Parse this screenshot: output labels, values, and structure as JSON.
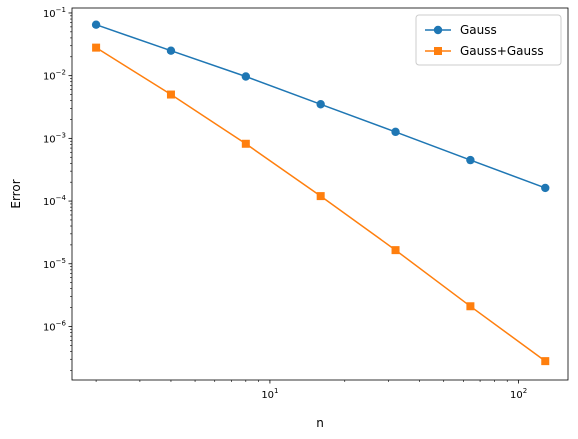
{
  "chart_data": {
    "type": "line",
    "title": "",
    "xlabel": "n",
    "ylabel": "Error",
    "xscale": "log",
    "yscale": "log",
    "xlim": [
      1.6,
      158
    ],
    "ylim": [
      1.4e-07,
      0.12
    ],
    "grid": false,
    "legend_position": "top-right",
    "x": [
      2,
      4,
      8,
      16,
      32,
      64,
      128
    ],
    "series": [
      {
        "name": "Gauss",
        "marker": "circle",
        "color": "#1f77b4",
        "values": [
          0.065,
          0.025,
          0.0097,
          0.0035,
          0.00127,
          0.00045,
          0.000162
        ]
      },
      {
        "name": "Gauss+Gauss",
        "marker": "square",
        "color": "#ff7f0e",
        "values": [
          0.028,
          0.005,
          0.00082,
          0.00012,
          1.65e-05,
          2.1e-06,
          2.8e-07
        ]
      }
    ],
    "x_major_ticks": [
      {
        "value": 10,
        "base": "10",
        "exp": "1"
      },
      {
        "value": 100,
        "base": "10",
        "exp": "2"
      }
    ],
    "y_major_ticks": [
      {
        "value": 0.1,
        "base": "10",
        "exp": "−1"
      },
      {
        "value": 0.01,
        "base": "10",
        "exp": "−2"
      },
      {
        "value": 0.001,
        "base": "10",
        "exp": "−3"
      },
      {
        "value": 0.0001,
        "base": "10",
        "exp": "−4"
      },
      {
        "value": 1e-05,
        "base": "10",
        "exp": "−5"
      },
      {
        "value": 1e-06,
        "base": "10",
        "exp": "−6"
      }
    ]
  }
}
